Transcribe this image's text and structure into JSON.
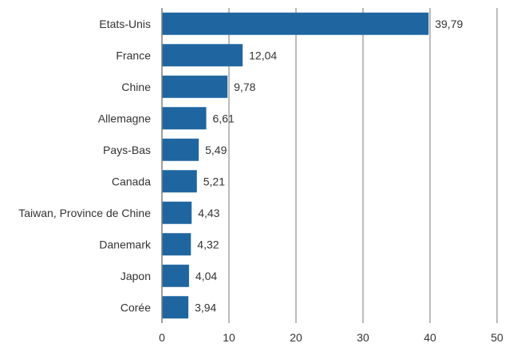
{
  "chart_data": {
    "type": "bar",
    "orientation": "horizontal",
    "categories": [
      "Etats-Unis",
      "France",
      "Chine",
      "Allemagne",
      "Pays-Bas",
      "Canada",
      "Taiwan, Province de Chine",
      "Danemark",
      "Japon",
      "Corée"
    ],
    "values": [
      39.79,
      12.04,
      9.78,
      6.61,
      5.49,
      5.21,
      4.43,
      4.32,
      4.04,
      3.94
    ],
    "value_labels": [
      "39,79",
      "12,04",
      "9,78",
      "6,61",
      "5,49",
      "5,21",
      "4,43",
      "4,32",
      "4,04",
      "3,94"
    ],
    "x_ticks": [
      "0",
      "10",
      "20",
      "30",
      "40",
      "50"
    ],
    "xlim": [
      0,
      50
    ],
    "grid": "vertical",
    "colors": {
      "bar": "#1f66a0",
      "grid": "#a6a6a6",
      "axis": "#7f7f7f"
    }
  }
}
